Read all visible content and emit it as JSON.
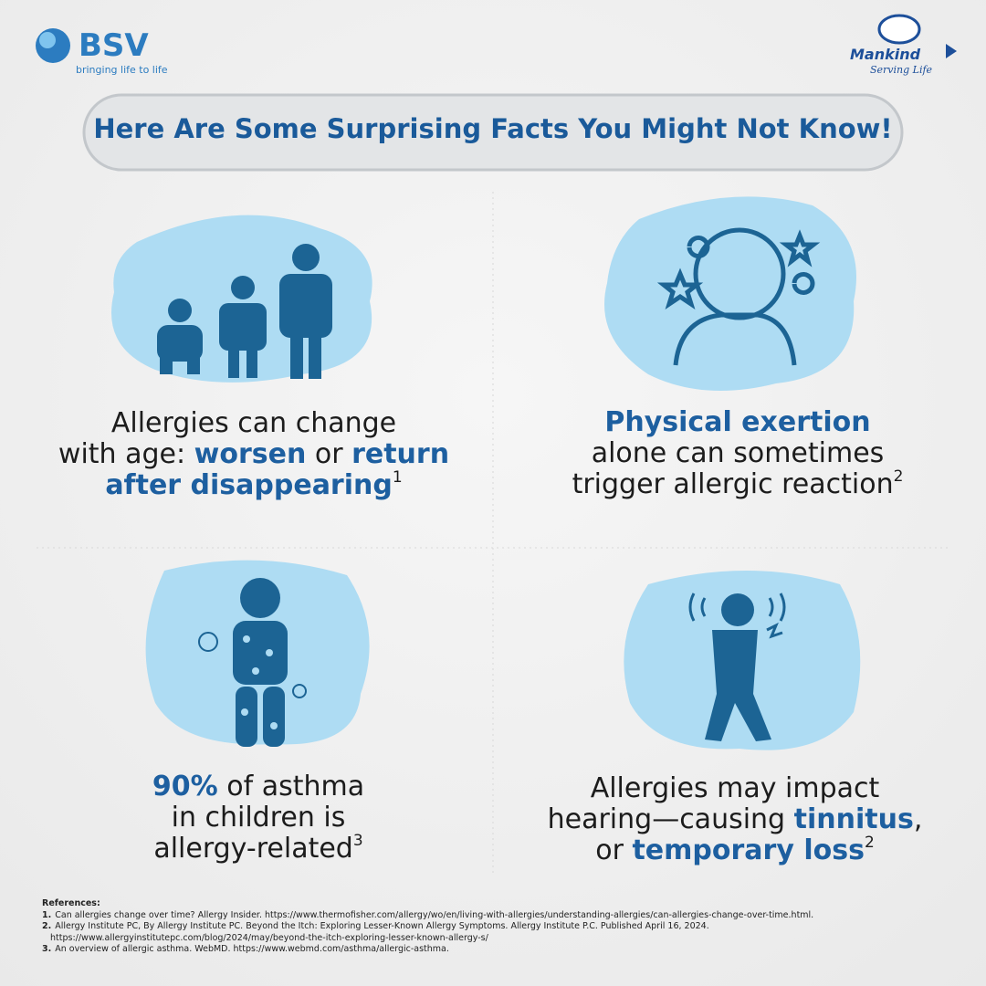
{
  "header": {
    "left_logo": {
      "name": "BSV",
      "tagline": "bringing life to life"
    },
    "right_logo": {
      "name": "Mankind",
      "tagline": "Serving Life"
    }
  },
  "title": "Here Are Some Surprising Facts You Might Not Know!",
  "facts": [
    {
      "lines": [
        [
          {
            "text": "Allergies can change",
            "style": "normal"
          }
        ],
        [
          {
            "text": "with age: ",
            "style": "normal"
          },
          {
            "text": "worsen",
            "style": "bold"
          },
          {
            "text": " or ",
            "style": "normal"
          },
          {
            "text": "return",
            "style": "bold"
          }
        ],
        [
          {
            "text": "after disappearing",
            "style": "bold"
          },
          {
            "text": "1",
            "style": "sup"
          }
        ]
      ]
    },
    {
      "lines": [
        [
          {
            "text": "Physical exertion",
            "style": "bold"
          }
        ],
        [
          {
            "text": "alone can sometimes",
            "style": "normal"
          }
        ],
        [
          {
            "text": "trigger allergic reaction",
            "style": "normal"
          },
          {
            "text": "2",
            "style": "sup"
          }
        ]
      ]
    },
    {
      "lines": [
        [
          {
            "text": "90%",
            "style": "bold"
          },
          {
            "text": " of asthma",
            "style": "normal"
          }
        ],
        [
          {
            "text": "in children is",
            "style": "normal"
          }
        ],
        [
          {
            "text": "allergy-related",
            "style": "normal"
          },
          {
            "text": "3",
            "style": "sup"
          }
        ]
      ]
    },
    {
      "lines": [
        [
          {
            "text": "Allergies may impact",
            "style": "normal"
          }
        ],
        [
          {
            "text": "hearing—causing ",
            "style": "normal"
          },
          {
            "text": "tinnitus",
            "style": "bold"
          },
          {
            "text": ",",
            "style": "normal"
          }
        ],
        [
          {
            "text": "or ",
            "style": "normal"
          },
          {
            "text": "temporary loss",
            "style": "bold"
          },
          {
            "text": "2",
            "style": "sup"
          }
        ]
      ]
    }
  ],
  "references": {
    "heading": "References:",
    "items": [
      {
        "number": "1.",
        "lines": [
          "Can allergies change over time? Allergy Insider. https://www.thermofisher.com/allergy/wo/en/living-with-allergies/understanding-allergies/can-allergies-change-over-time.html."
        ]
      },
      {
        "number": "2.",
        "lines": [
          "Allergy Institute PC, By Allergy Institute PC. Beyond the Itch: Exploring Lesser-Known Allergy Symptoms. Allergy Institute P.C. Published April 16, 2024.",
          "https://www.allergyinstitutepc.com/blog/2024/may/beyond-the-itch-exploring-lesser-known-allergy-s/"
        ]
      },
      {
        "number": "3.",
        "lines": [
          "An overview of allergic asthma. WebMD. https://www.webmd.com/asthma/allergic-asthma."
        ]
      }
    ]
  }
}
